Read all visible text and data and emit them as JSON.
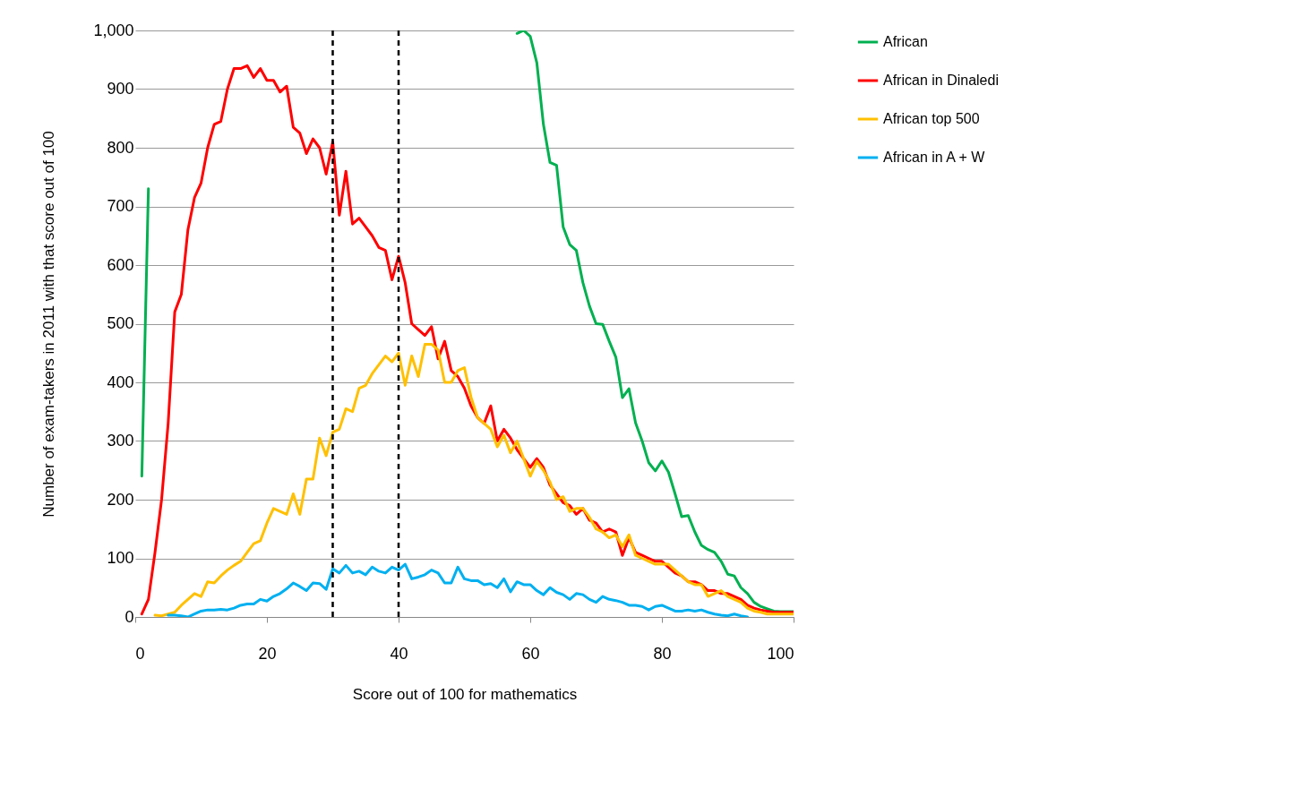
{
  "chart_data": {
    "type": "line",
    "xlabel": "Score out of 100 for mathematics",
    "ylabel": "Number of exam-takers in 2011 with that score out of 100",
    "xlim": [
      0,
      100
    ],
    "ylim": [
      0,
      1000
    ],
    "xticks": [
      0,
      20,
      40,
      60,
      80,
      100
    ],
    "yticks": [
      0,
      100,
      200,
      300,
      400,
      500,
      600,
      700,
      800,
      900,
      {
        "value": 1000,
        "label": "1,000"
      }
    ],
    "grid": "y",
    "legend": "right",
    "series": [
      {
        "name": "African",
        "color": "#00b050",
        "x": [
          1,
          2,
          3,
          57,
          58,
          59,
          60,
          61,
          62,
          63,
          64,
          65,
          66,
          67,
          68,
          69,
          70,
          71,
          72,
          73,
          74,
          75,
          76,
          77,
          78,
          79,
          80,
          81,
          82,
          83,
          84,
          85,
          86,
          87,
          88,
          89,
          90,
          91,
          92,
          93,
          94,
          95,
          96,
          97,
          98,
          99,
          100
        ],
        "values": [
          240,
          730,
          null,
          null,
          995,
          1000,
          990,
          945,
          840,
          775,
          770,
          665,
          635,
          625,
          570,
          530,
          500,
          499,
          470,
          443,
          374,
          389,
          331,
          300,
          263,
          249,
          266,
          247,
          210,
          171,
          173,
          145,
          122,
          115,
          110,
          95,
          73,
          70,
          50,
          40,
          25,
          18,
          14,
          10,
          9,
          9,
          9
        ]
      },
      {
        "name": "African in Dinaledi",
        "color": "#ff0000",
        "x": [
          1,
          2,
          3,
          4,
          5,
          6,
          7,
          8,
          9,
          10,
          11,
          12,
          13,
          14,
          15,
          16,
          17,
          18,
          19,
          20,
          21,
          22,
          23,
          24,
          25,
          26,
          27,
          28,
          29,
          30,
          31,
          32,
          33,
          34,
          35,
          36,
          37,
          38,
          39,
          40,
          41,
          42,
          43,
          44,
          45,
          46,
          47,
          48,
          49,
          50,
          51,
          52,
          53,
          54,
          55,
          56,
          57,
          58,
          59,
          60,
          61,
          62,
          63,
          64,
          65,
          66,
          67,
          68,
          69,
          70,
          71,
          72,
          73,
          74,
          75,
          76,
          77,
          78,
          79,
          80,
          81,
          82,
          83,
          84,
          85,
          86,
          87,
          88,
          89,
          90,
          91,
          92,
          93,
          94,
          95,
          96,
          97,
          98,
          99,
          100
        ],
        "values": [
          5,
          30,
          110,
          200,
          330,
          520,
          550,
          660,
          715,
          740,
          800,
          840,
          845,
          900,
          935,
          935,
          940,
          920,
          935,
          915,
          915,
          895,
          905,
          835,
          825,
          790,
          815,
          800,
          755,
          810,
          685,
          760,
          670,
          680,
          665,
          650,
          630,
          625,
          575,
          615,
          570,
          500,
          490,
          480,
          495,
          440,
          470,
          420,
          410,
          390,
          360,
          340,
          330,
          360,
          300,
          320,
          305,
          285,
          270,
          255,
          270,
          255,
          225,
          210,
          195,
          190,
          175,
          185,
          165,
          160,
          145,
          150,
          145,
          105,
          135,
          110,
          105,
          100,
          95,
          95,
          85,
          75,
          70,
          60,
          60,
          55,
          45,
          45,
          40,
          40,
          35,
          30,
          20,
          15,
          12,
          10,
          8,
          8,
          8,
          8
        ]
      },
      {
        "name": "African top 500",
        "color": "#ffc000",
        "x": [
          3,
          4,
          5,
          6,
          7,
          8,
          9,
          10,
          11,
          12,
          13,
          14,
          15,
          16,
          17,
          18,
          19,
          20,
          21,
          22,
          23,
          24,
          25,
          26,
          27,
          28,
          29,
          30,
          31,
          32,
          33,
          34,
          35,
          36,
          37,
          38,
          39,
          40,
          41,
          42,
          43,
          44,
          45,
          46,
          47,
          48,
          49,
          50,
          51,
          52,
          53,
          54,
          55,
          56,
          57,
          58,
          59,
          60,
          61,
          62,
          63,
          64,
          65,
          66,
          67,
          68,
          69,
          70,
          71,
          72,
          73,
          74,
          75,
          76,
          77,
          78,
          79,
          80,
          81,
          82,
          83,
          84,
          85,
          86,
          87,
          88,
          89,
          90,
          91,
          92,
          93,
          94,
          95,
          96,
          97,
          98,
          99,
          100
        ],
        "values": [
          3,
          2,
          5,
          8,
          20,
          30,
          40,
          35,
          60,
          58,
          70,
          80,
          88,
          95,
          110,
          125,
          130,
          160,
          185,
          180,
          175,
          210,
          175,
          235,
          235,
          305,
          275,
          315,
          320,
          355,
          350,
          390,
          395,
          415,
          430,
          445,
          435,
          450,
          395,
          445,
          410,
          465,
          465,
          455,
          400,
          400,
          420,
          425,
          375,
          340,
          330,
          320,
          290,
          310,
          280,
          300,
          270,
          240,
          265,
          250,
          230,
          200,
          205,
          180,
          185,
          185,
          170,
          150,
          145,
          135,
          140,
          120,
          140,
          105,
          100,
          95,
          90,
          90,
          90,
          80,
          70,
          60,
          55,
          55,
          35,
          40,
          45,
          35,
          30,
          25,
          15,
          10,
          8,
          5,
          5,
          5,
          5,
          5
        ]
      },
      {
        "name": "African in A + W",
        "color": "#00b0f0",
        "x": [
          5,
          6,
          7,
          8,
          9,
          10,
          11,
          12,
          13,
          14,
          15,
          16,
          17,
          18,
          19,
          20,
          21,
          22,
          23,
          24,
          25,
          26,
          27,
          28,
          29,
          30,
          31,
          32,
          33,
          34,
          35,
          36,
          37,
          38,
          39,
          40,
          41,
          42,
          43,
          44,
          45,
          46,
          47,
          48,
          49,
          50,
          51,
          52,
          53,
          54,
          55,
          56,
          57,
          58,
          59,
          60,
          61,
          62,
          63,
          64,
          65,
          66,
          67,
          68,
          69,
          70,
          71,
          72,
          73,
          74,
          75,
          76,
          77,
          78,
          79,
          80,
          81,
          82,
          83,
          84,
          85,
          86,
          87,
          88,
          89,
          90,
          91,
          92,
          93
        ],
        "values": [
          3,
          3,
          2,
          0,
          5,
          10,
          12,
          12,
          13,
          12,
          15,
          20,
          22,
          22,
          30,
          27,
          35,
          40,
          48,
          58,
          52,
          45,
          58,
          57,
          47,
          82,
          75,
          88,
          75,
          78,
          72,
          85,
          78,
          75,
          85,
          80,
          90,
          65,
          68,
          72,
          80,
          75,
          58,
          58,
          85,
          65,
          62,
          62,
          55,
          57,
          50,
          65,
          43,
          60,
          55,
          55,
          45,
          38,
          50,
          42,
          38,
          30,
          40,
          38,
          30,
          25,
          35,
          30,
          28,
          25,
          20,
          20,
          18,
          12,
          18,
          20,
          15,
          10,
          10,
          12,
          10,
          12,
          8,
          5,
          3,
          2,
          5,
          2,
          0
        ]
      }
    ],
    "ref_lines": [
      {
        "axis": "x",
        "value": 30,
        "color": "#000000",
        "line_style": "dashed"
      },
      {
        "axis": "x",
        "value": 40,
        "color": "#000000",
        "line_style": "dashed"
      }
    ]
  }
}
